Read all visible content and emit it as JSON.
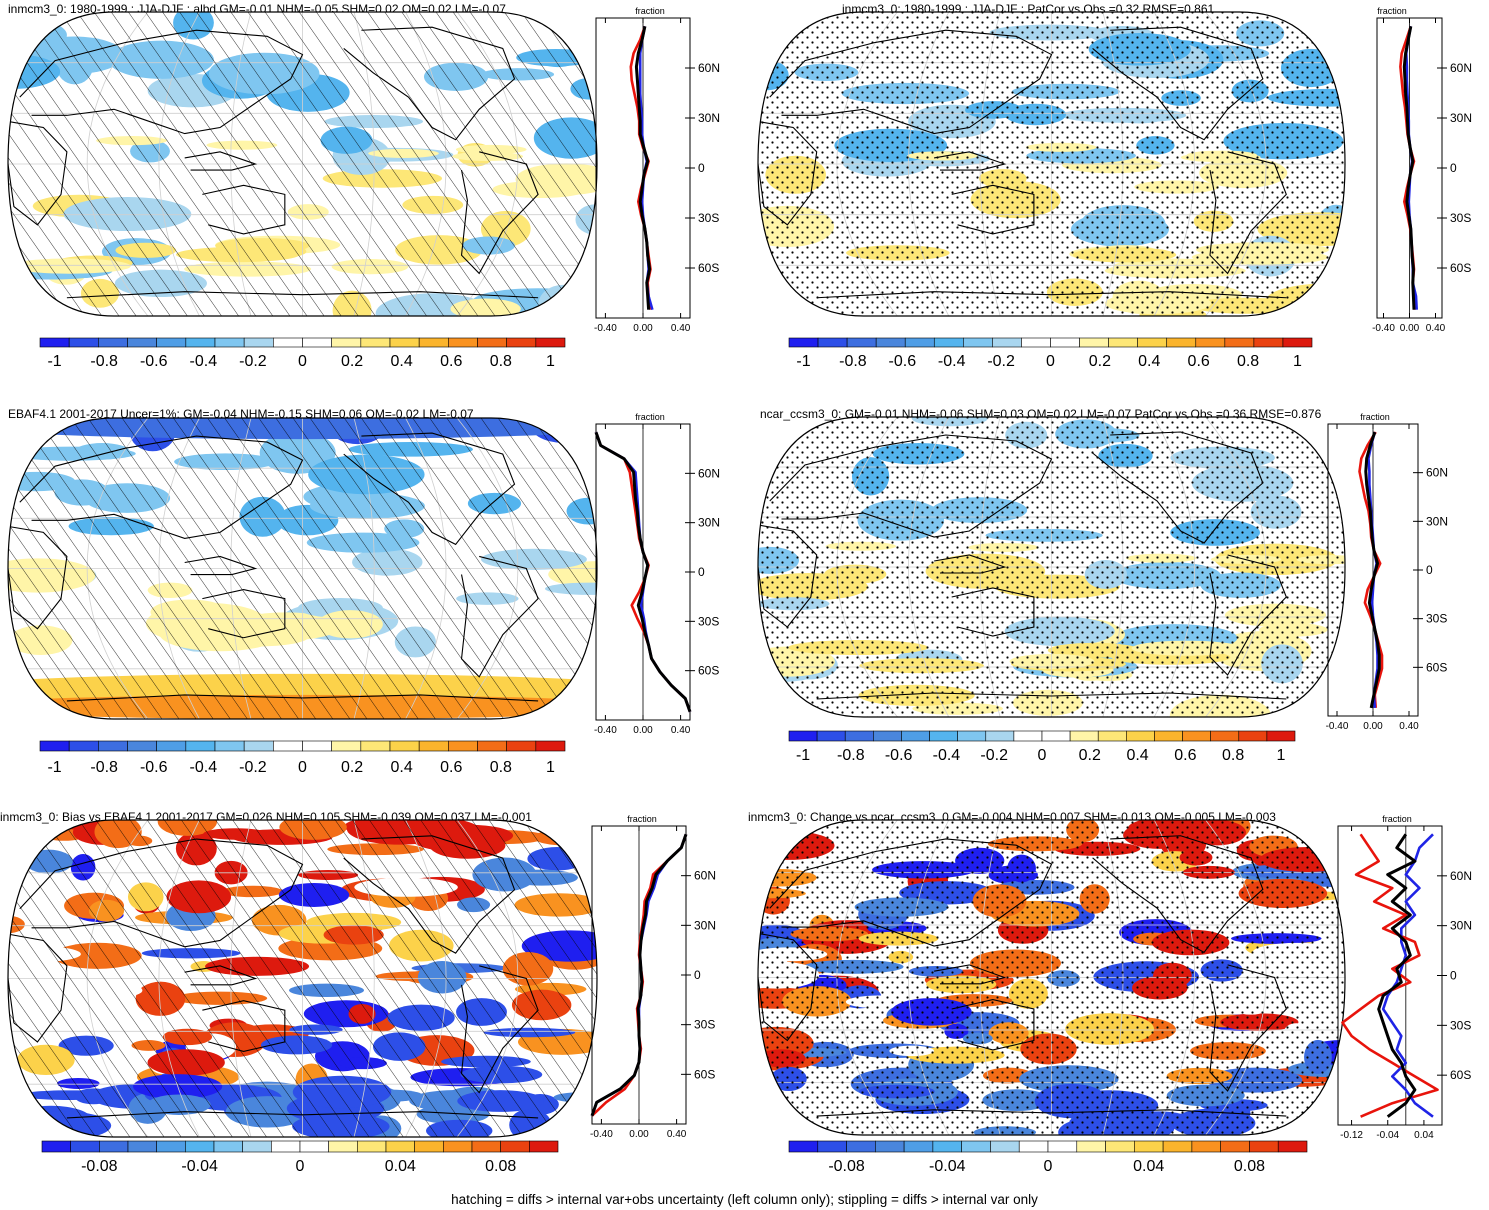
{
  "footer": "hatching = diffs > internal var+obs uncertainty (left column only); stippling = diffs > internal var only",
  "palette": [
    "#1f1ff0",
    "#2d4fe8",
    "#3d6ee0",
    "#4a86dc",
    "#4f9ee6",
    "#54b4ee",
    "#7fc6f0",
    "#a9d6ef",
    "#ffffff",
    "#ffffff",
    "#fff5a8",
    "#fde777",
    "#fcd24a",
    "#fbb42c",
    "#f99220",
    "#f36d17",
    "#ea4210",
    "#dd1a0e"
  ],
  "colors": {
    "red": "#e8140c",
    "blue": "#1f24e6",
    "black": "#000000",
    "grid": "#cfcfcf",
    "land": "#ffffff"
  },
  "chart_data": [
    {
      "type": "map_zonal",
      "panel": "top-left",
      "title": "inmcm3_0: 1980-1999 : JJA-DJF : albd GM=-0.01 NHM=-0.05 SHM=0.02 OM=0.02 LM=-0.07",
      "pattern": "hatch",
      "palette_mode": "muted",
      "colorbar_ticks": [
        "-1",
        "-0.8",
        "-0.6",
        "-0.4",
        "-0.2",
        "0",
        "0.2",
        "0.4",
        "0.6",
        "0.8",
        "1"
      ],
      "zonal": {
        "label": "fraction",
        "ytick_labels": [
          "60N",
          "30N",
          "0",
          "30S",
          "60S"
        ],
        "yticks": [
          60,
          30,
          0,
          -30,
          -60
        ],
        "xticks": [
          -0.4,
          0,
          0.4
        ],
        "xtick_labels": [
          "-0.40",
          "0.00",
          "0.40"
        ],
        "xlim": [
          -0.5,
          0.5
        ],
        "series": [
          {
            "name": "red",
            "values": [
              0.02,
              -0.03,
              -0.1,
              -0.13,
              -0.12,
              -0.09,
              -0.06,
              -0.04,
              -0.04,
              0.0,
              0.06,
              0.02,
              -0.02,
              -0.05,
              -0.02,
              0.02,
              0.04,
              0.06,
              0.08,
              0.05,
              0.06,
              0.08
            ]
          },
          {
            "name": "blue",
            "values": [
              0.02,
              -0.01,
              -0.03,
              -0.03,
              -0.03,
              -0.03,
              -0.02,
              -0.01,
              -0.01,
              0.01,
              0.04,
              0.01,
              0.0,
              -0.01,
              0.0,
              0.02,
              0.04,
              0.05,
              0.06,
              0.04,
              0.06,
              0.1
            ]
          },
          {
            "name": "black",
            "values": [
              0.02,
              -0.01,
              -0.05,
              -0.07,
              -0.06,
              -0.05,
              -0.04,
              -0.03,
              -0.03,
              0.01,
              0.05,
              0.01,
              -0.01,
              -0.03,
              -0.01,
              0.02,
              0.04,
              0.05,
              0.07,
              0.04,
              0.05,
              0.06
            ]
          }
        ]
      }
    },
    {
      "type": "map_zonal",
      "panel": "top-right",
      "title": "inmcm3_0: 1980-1999 : JJA-DJF : PatCor vs Obs =0.32 RMSE=0.861",
      "pattern": "stipple",
      "palette_mode": "muted",
      "colorbar_ticks": [
        "-1",
        "-0.8",
        "-0.6",
        "-0.4",
        "-0.2",
        "0",
        "0.2",
        "0.4",
        "0.6",
        "0.8",
        "1"
      ],
      "zonal": {
        "label": "fraction",
        "ytick_labels": [
          "60N",
          "30N",
          "0",
          "30S",
          "60S"
        ],
        "yticks": [
          60,
          30,
          0,
          -30,
          -60
        ],
        "xticks": [
          -0.4,
          0,
          0.4
        ],
        "xtick_labels": [
          "-0.40",
          "0.00",
          "0.40"
        ],
        "xlim": [
          -0.5,
          0.5
        ],
        "series": [
          {
            "name": "red",
            "values": [
              0.02,
              -0.05,
              -0.12,
              -0.14,
              -0.12,
              -0.1,
              -0.07,
              -0.05,
              -0.03,
              0.01,
              0.07,
              0.01,
              -0.04,
              -0.08,
              -0.03,
              0.01,
              0.03,
              0.05,
              0.07,
              0.05,
              0.07,
              0.08
            ]
          },
          {
            "name": "blue",
            "values": [
              0.02,
              -0.02,
              -0.05,
              -0.04,
              -0.04,
              -0.03,
              -0.02,
              -0.01,
              -0.01,
              0.01,
              0.04,
              0.01,
              0.0,
              -0.01,
              0.0,
              0.02,
              0.03,
              0.04,
              0.05,
              0.05,
              0.1,
              0.11
            ]
          },
          {
            "name": "black",
            "values": [
              0.02,
              -0.02,
              -0.06,
              -0.08,
              -0.07,
              -0.06,
              -0.04,
              -0.03,
              -0.02,
              0.01,
              0.05,
              0.01,
              -0.02,
              -0.04,
              -0.01,
              0.02,
              0.03,
              0.04,
              0.06,
              0.05,
              0.06,
              0.07
            ]
          }
        ]
      }
    },
    {
      "type": "map_zonal",
      "panel": "middle-left",
      "title": "EBAF4.1 2001-2017 Uncer=1%: GM=-0.04 NHM=-0.15 SHM=0.06 OM=-0.02 LM=-0.07",
      "pattern": "hatch",
      "palette_mode": "strong-south",
      "colorbar_ticks": [
        "-1",
        "-0.8",
        "-0.6",
        "-0.4",
        "-0.2",
        "0",
        "0.2",
        "0.4",
        "0.6",
        "0.8",
        "1"
      ],
      "zonal": {
        "label": "fraction",
        "ytick_labels": [
          "60N",
          "30N",
          "0",
          "30S",
          "60S"
        ],
        "yticks": [
          60,
          30,
          0,
          -30,
          -60
        ],
        "xticks": [
          -0.4,
          0,
          0.4
        ],
        "xtick_labels": [
          "-0.40",
          "0.00",
          "0.40"
        ],
        "xlim": [
          -0.5,
          0.5
        ],
        "series": [
          {
            "name": "red",
            "values": [
              -0.5,
              -0.45,
              -0.2,
              -0.14,
              -0.12,
              -0.1,
              -0.08,
              -0.06,
              -0.04,
              0.0,
              0.06,
              0.02,
              -0.04,
              -0.12,
              -0.06,
              0.01,
              0.06,
              0.09,
              0.18,
              0.3,
              0.45,
              0.5
            ]
          },
          {
            "name": "blue",
            "values": [
              -0.5,
              -0.45,
              -0.2,
              -0.08,
              -0.07,
              -0.06,
              -0.05,
              -0.04,
              -0.03,
              0.0,
              0.05,
              0.02,
              0.0,
              -0.02,
              0.01,
              0.03,
              0.06,
              0.09,
              0.18,
              0.3,
              0.45,
              0.5
            ]
          },
          {
            "name": "black",
            "values": [
              -0.5,
              -0.45,
              -0.2,
              -0.1,
              -0.09,
              -0.08,
              -0.06,
              -0.05,
              -0.03,
              0.0,
              0.05,
              0.02,
              -0.01,
              -0.05,
              -0.01,
              0.02,
              0.06,
              0.09,
              0.18,
              0.3,
              0.45,
              0.5
            ]
          }
        ]
      }
    },
    {
      "type": "map_zonal",
      "panel": "middle-right",
      "title": "ncar_ccsm3_0: GM=-0.01 NHM=-0.06 SHM=0.03 OM=0.02 LM=-0.07 PatCor vs Obs =0.36 RMSE=0.876",
      "pattern": "stipple",
      "palette_mode": "muted",
      "colorbar_ticks": [
        "-1",
        "-0.8",
        "-0.6",
        "-0.4",
        "-0.2",
        "0",
        "0.2",
        "0.4",
        "0.6",
        "0.8",
        "1"
      ],
      "zonal": {
        "label": "fraction",
        "ytick_labels": [
          "60N",
          "30N",
          "0",
          "30S",
          "60S"
        ],
        "yticks": [
          60,
          30,
          0,
          -30,
          -60
        ],
        "xticks": [
          -0.4,
          0,
          0.4
        ],
        "xtick_labels": [
          "-0.40",
          "0.00",
          "0.40"
        ],
        "xlim": [
          -0.5,
          0.5
        ],
        "series": [
          {
            "name": "red",
            "values": [
              0.03,
              -0.06,
              -0.13,
              -0.15,
              -0.12,
              -0.09,
              -0.05,
              -0.03,
              -0.02,
              0.01,
              0.08,
              0.01,
              -0.06,
              -0.09,
              -0.03,
              0.02,
              0.06,
              0.1,
              0.1,
              0.06,
              0.02,
              0.03
            ]
          },
          {
            "name": "blue",
            "values": [
              0.02,
              -0.02,
              -0.05,
              -0.04,
              -0.04,
              -0.03,
              -0.02,
              -0.01,
              0.0,
              0.01,
              0.04,
              0.01,
              0.0,
              -0.01,
              0.0,
              0.02,
              0.04,
              0.05,
              0.05,
              0.03,
              0.01,
              0.02
            ]
          },
          {
            "name": "black",
            "values": [
              0.02,
              -0.03,
              -0.07,
              -0.08,
              -0.07,
              -0.05,
              -0.03,
              -0.02,
              -0.01,
              0.01,
              0.05,
              0.01,
              -0.02,
              -0.04,
              -0.01,
              0.02,
              0.05,
              0.07,
              0.07,
              0.04,
              0.01,
              -0.02
            ]
          }
        ]
      }
    },
    {
      "type": "map_zonal",
      "panel": "bottom-left",
      "title": "inmcm3_0: Bias vs EBAF4.1 2001-2017 GM=0.026 NHM=0.105 SHM=-0.039 OM=0.037 LM=-0.001",
      "pattern": "hatch",
      "palette_mode": "strong",
      "colorbar_ticks": [
        "-0.08",
        "-0.04",
        "0",
        "0.04",
        "0.08"
      ],
      "zonal": {
        "label": "fraction",
        "ytick_labels": [
          "60N",
          "30N",
          "0",
          "30S",
          "60S"
        ],
        "yticks": [
          60,
          30,
          0,
          -30,
          -60
        ],
        "xticks": [
          -0.4,
          0,
          0.4
        ],
        "xtick_labels": [
          "-0.40",
          "0.00",
          "0.40"
        ],
        "xlim": [
          -0.5,
          0.5
        ],
        "series": [
          {
            "name": "red",
            "values": [
              0.5,
              0.45,
              0.3,
              0.15,
              0.12,
              0.06,
              0.05,
              0.03,
              0.01,
              0.0,
              0.02,
              0.04,
              0.02,
              -0.02,
              -0.01,
              0.0,
              0.02,
              0.0,
              -0.05,
              -0.15,
              -0.35,
              -0.5
            ]
          },
          {
            "name": "blue",
            "values": [
              0.5,
              0.45,
              0.3,
              0.2,
              0.16,
              0.1,
              0.08,
              0.05,
              0.02,
              0.01,
              0.02,
              0.03,
              0.02,
              0.0,
              0.0,
              0.0,
              0.01,
              0.0,
              -0.05,
              -0.2,
              -0.45,
              -0.5
            ]
          },
          {
            "name": "black",
            "values": [
              0.5,
              0.45,
              0.3,
              0.18,
              0.14,
              0.08,
              0.07,
              0.04,
              0.02,
              0.01,
              0.02,
              0.03,
              0.02,
              -0.01,
              0.0,
              0.0,
              0.01,
              0.0,
              -0.05,
              -0.2,
              -0.45,
              -0.5
            ]
          }
        ]
      }
    },
    {
      "type": "map_zonal",
      "panel": "bottom-right",
      "title": "inmcm3_0: Change vs ncar_ccsm3_0 GM=-0.004 NHM=0.007 SHM=-0.013 OM=-0.005 LM=-0.003",
      "pattern": "stipple",
      "palette_mode": "strong",
      "colorbar_ticks": [
        "-0.08",
        "-0.04",
        "0",
        "0.04",
        "0.08"
      ],
      "zonal": {
        "label": "fraction",
        "ytick_labels": [
          "60N",
          "30N",
          "0",
          "30S",
          "60S"
        ],
        "yticks": [
          60,
          30,
          0,
          -30,
          -60
        ],
        "xticks": [
          -0.12,
          -0.04,
          0.04
        ],
        "xtick_labels": [
          "-0.12",
          "-0.04",
          "0.04"
        ],
        "xlim": [
          -0.15,
          0.08
        ],
        "series": [
          {
            "name": "red",
            "values": [
              -0.1,
              -0.08,
              -0.06,
              -0.11,
              -0.03,
              -0.07,
              0.0,
              -0.05,
              0.02,
              0.03,
              -0.03,
              0.01,
              -0.06,
              -0.1,
              -0.14,
              -0.12,
              -0.08,
              -0.03,
              0.02,
              0.07,
              -0.03,
              -0.1
            ]
          },
          {
            "name": "blue",
            "values": [
              0.06,
              0.03,
              0.02,
              0.0,
              0.03,
              0.0,
              0.02,
              -0.01,
              -0.01,
              0.0,
              -0.01,
              -0.02,
              -0.04,
              -0.05,
              -0.03,
              -0.01,
              -0.02,
              0.0,
              -0.03,
              0.0,
              0.02,
              0.06
            ]
          },
          {
            "name": "black",
            "values": [
              0.0,
              -0.02,
              0.02,
              -0.04,
              0.0,
              -0.03,
              0.01,
              -0.03,
              0.0,
              0.01,
              -0.02,
              -0.01,
              -0.05,
              -0.06,
              -0.05,
              -0.04,
              -0.03,
              -0.01,
              0.0,
              0.02,
              0.0,
              -0.04
            ]
          }
        ]
      }
    }
  ]
}
